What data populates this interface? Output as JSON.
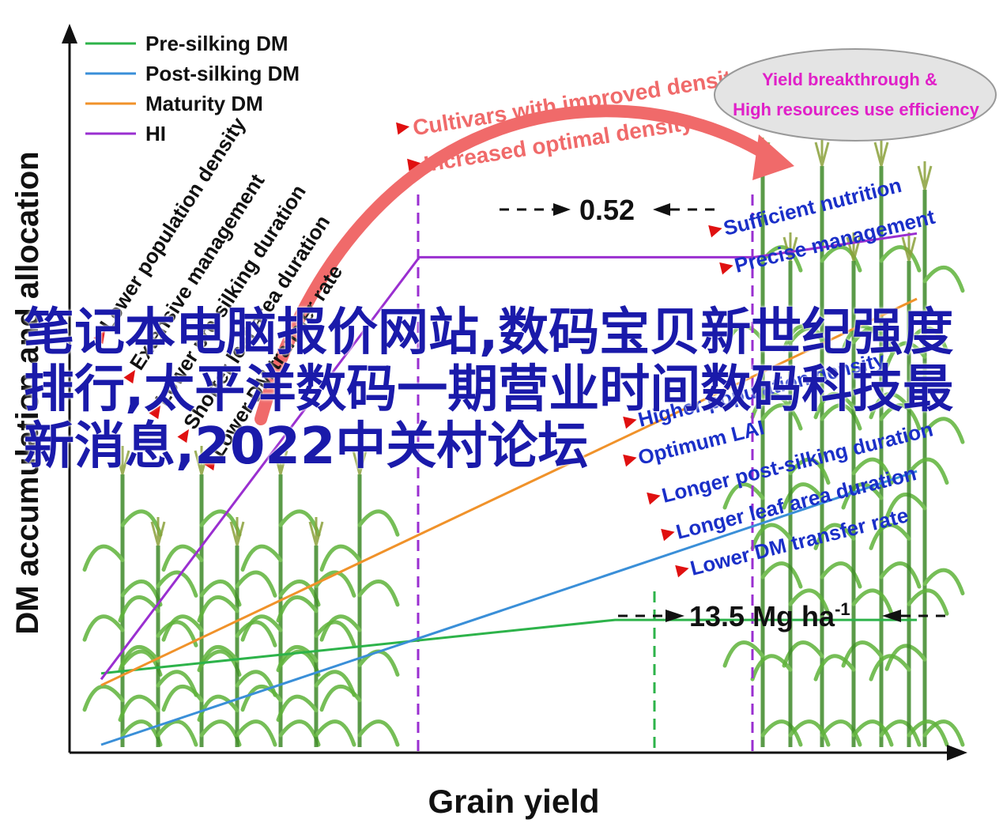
{
  "chart_data": {
    "type": "line",
    "xlabel": "Grain yield",
    "ylabel": "DM accumulation and allocation",
    "series": [
      {
        "name": "Pre-silking DM",
        "color": "#2db34a",
        "points": [
          [
            0.0,
            0.12
          ],
          [
            0.63,
            0.21
          ],
          [
            1.0,
            0.21
          ]
        ]
      },
      {
        "name": "Post-silking DM",
        "color": "#3a8fd8",
        "points": [
          [
            0.0,
            0.0
          ],
          [
            1.0,
            0.46
          ]
        ]
      },
      {
        "name": "Maturity DM",
        "color": "#f0922a",
        "points": [
          [
            0.0,
            0.1
          ],
          [
            1.0,
            0.75
          ]
        ]
      },
      {
        "name": "HI",
        "color": "#9a2fd0",
        "points": [
          [
            0.0,
            0.11
          ],
          [
            0.39,
            0.82
          ],
          [
            0.8,
            0.82
          ],
          [
            1.0,
            0.86
          ]
        ]
      }
    ]
  },
  "legend": [
    {
      "label": "Pre-silking DM",
      "color": "#2db34a"
    },
    {
      "label": "Post-silking DM",
      "color": "#3a8fd8"
    },
    {
      "label": "Maturity DM",
      "color": "#f0922a"
    },
    {
      "label": "HI",
      "color": "#9a2fd0"
    }
  ],
  "left_factors": [
    "Lower population density",
    "Extensive management",
    "Lower pre-silking duration",
    "Shorter leaf area duration",
    "Lower DM transfer rate"
  ],
  "right_factors": [
    "Higher population density",
    "Optimum LAI",
    "Longer post-silking duration",
    "Longer leaf area duration",
    "Lower DM transfer rate"
  ],
  "top_right_factors": [
    "Sufficient nutrition",
    "Precise management"
  ],
  "arrow_labels": [
    "Cultivars with improved density tolerance",
    "Increased optimal density"
  ],
  "ellipse_text": [
    "Yield breakthrough &",
    "High resources use efficiency"
  ],
  "hi_gap_label": "0.52",
  "yield_label": "13.5 Mg ha",
  "yield_superscript": "-1",
  "overlay_title": "笔记本电脑报价网站,数码宝贝新世纪强度排行,太平洋数码一期营业时间数码科技最新消息,2022中关村论坛",
  "colors": {
    "arrow": "#f06a6a",
    "factor_text": "#1a2fc8",
    "ellipse_text": "#e020c8",
    "marker": "#e01010"
  }
}
